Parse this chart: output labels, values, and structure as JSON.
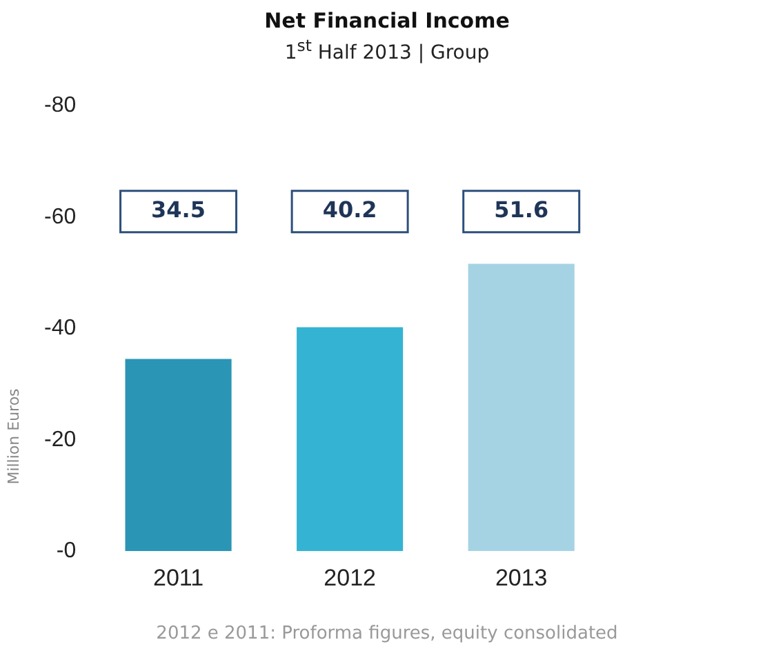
{
  "chart_data": {
    "type": "bar",
    "title": "Net Financial Income",
    "subtitle": "1$^{st}$ Half 2013 | Group",
    "ylabel": "Million  Euros",
    "categories": [
      "2011",
      "2012",
      "2013"
    ],
    "values": [
      -34.5,
      -40.2,
      -51.6
    ],
    "colors": [
      "#2a95b5",
      "#35b3d2",
      "#a6d3e3"
    ],
    "ylim": [
      0,
      -80
    ],
    "yticks": [
      {
        "value": 0,
        "label": "-0"
      },
      -20,
      -40,
      -60,
      -80
    ],
    "grid": false,
    "legend": false,
    "annotations": [
      "34.5",
      "40.2",
      "51.6",
      "2012 e 2011: Proforma figures, equity consolidated"
    ]
  }
}
